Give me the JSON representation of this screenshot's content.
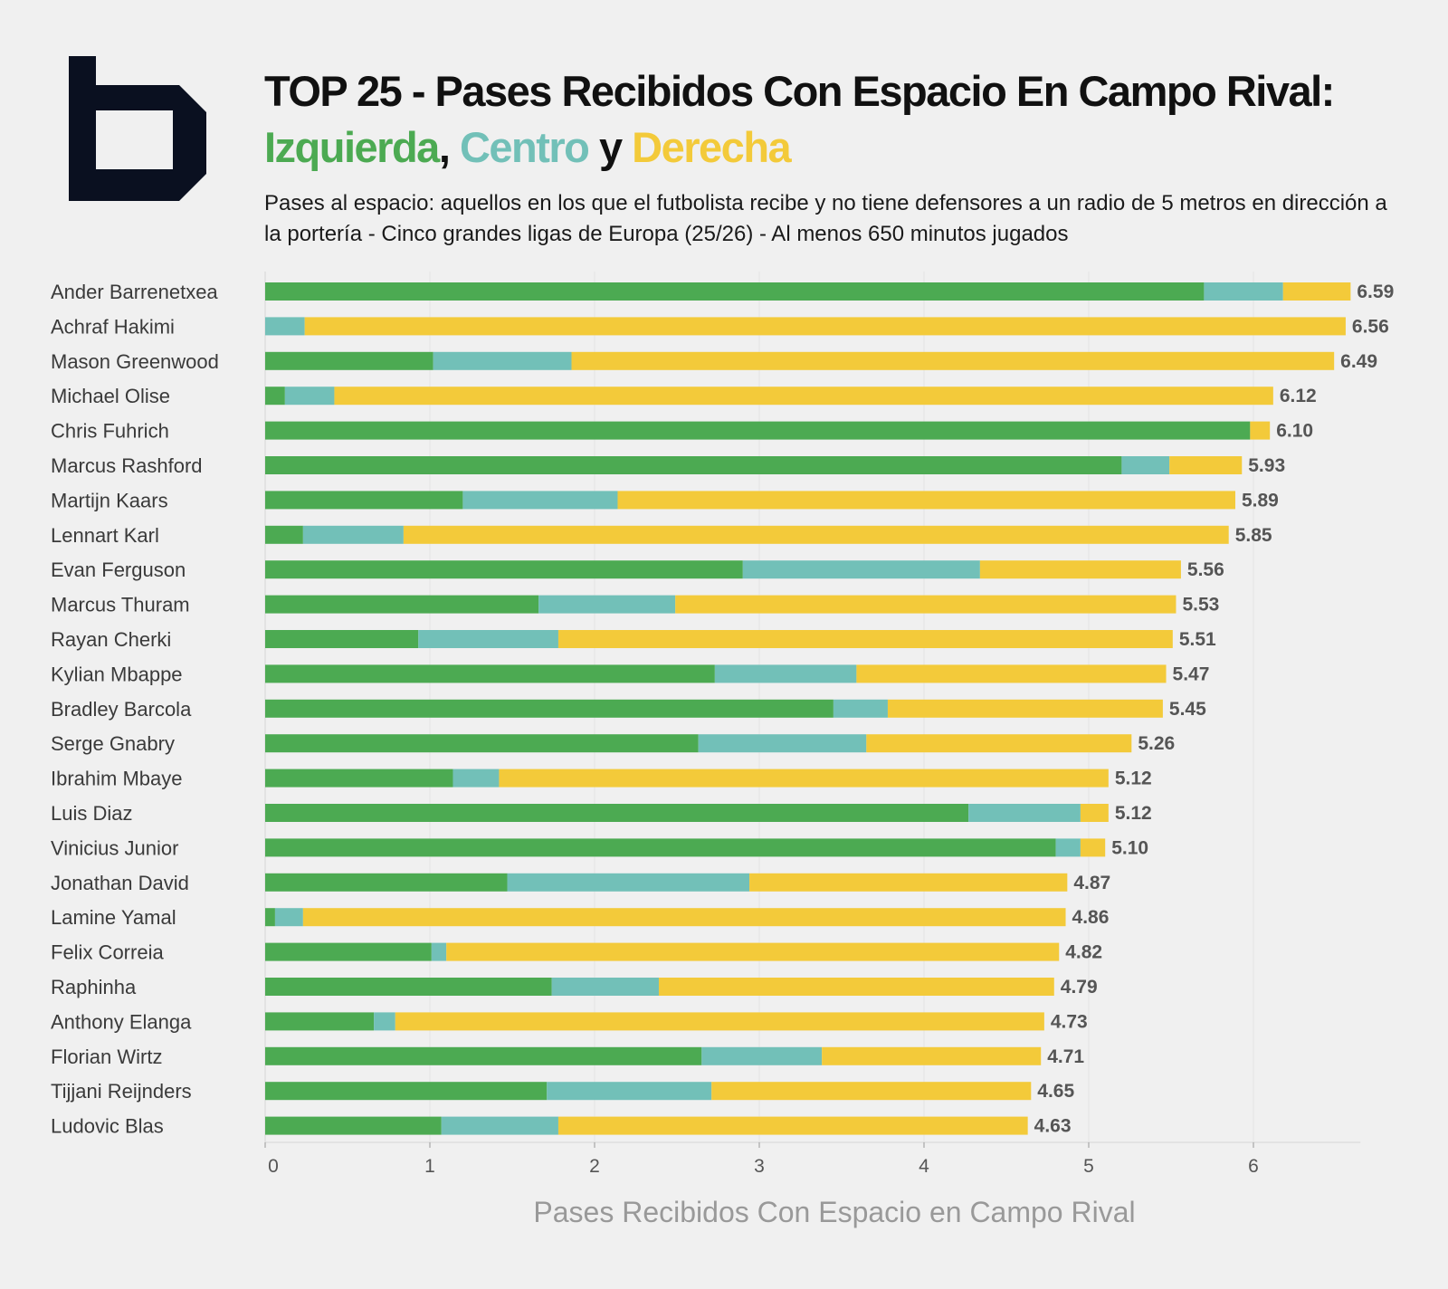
{
  "header": {
    "title_main": "TOP 25 - Pases Recibidos Con Espacio En Campo Rival:",
    "title_left": "Izquierda",
    "title_sep": ",",
    "title_center": "Centro",
    "title_and": "y",
    "title_right": "Derecha",
    "subtitle": "Pases al espacio: aquellos en los que el futbolista recibe y no tiene defensores a un radio de 5 metros en dirección a la portería - Cinco grandes ligas de Europa (25/26) - Al menos 650 minutos jugados",
    "logo_icon": "b-logo-icon"
  },
  "colors": {
    "izquierda": "#4caa52",
    "centro": "#72c0b8",
    "derecha": "#f3ca3a",
    "logo": "#0a1020"
  },
  "chart_data": {
    "type": "bar",
    "orientation": "horizontal",
    "stacked": true,
    "xlabel": "Pases Recibidos Con Espacio en Campo Rival",
    "xlim": [
      0,
      6.7
    ],
    "xticks": [
      0,
      1,
      2,
      3,
      4,
      5,
      6
    ],
    "grid": true,
    "categories": [
      "Ander Barrenetxea",
      "Achraf Hakimi",
      "Mason Greenwood",
      "Michael Olise",
      "Chris Fuhrich",
      "Marcus Rashford",
      "Martijn Kaars",
      "Lennart Karl",
      "Evan Ferguson",
      "Marcus Thuram",
      "Rayan Cherki",
      "Kylian Mbappe",
      "Bradley Barcola",
      "Serge Gnabry",
      "Ibrahim Mbaye",
      "Luis Diaz",
      "Vinicius Junior",
      "Jonathan David",
      "Lamine Yamal",
      "Felix Correia",
      "Raphinha",
      "Anthony Elanga",
      "Florian Wirtz",
      "Tijjani Reijnders",
      "Ludovic Blas"
    ],
    "series": [
      {
        "name": "Izquierda",
        "values": [
          5.7,
          0.0,
          1.02,
          0.12,
          5.98,
          5.2,
          1.2,
          0.23,
          2.9,
          1.66,
          0.93,
          2.73,
          3.45,
          2.63,
          1.14,
          4.27,
          4.8,
          1.47,
          0.06,
          1.01,
          1.74,
          0.66,
          2.65,
          1.71,
          1.07
        ]
      },
      {
        "name": "Centro",
        "values": [
          0.48,
          0.24,
          0.84,
          0.3,
          0.0,
          0.29,
          0.94,
          0.61,
          1.44,
          0.83,
          0.85,
          0.86,
          0.33,
          1.02,
          0.28,
          0.68,
          0.15,
          1.47,
          0.17,
          0.09,
          0.65,
          0.13,
          0.73,
          1.0,
          0.71
        ]
      },
      {
        "name": "Derecha",
        "values": [
          0.41,
          6.32,
          4.63,
          5.7,
          0.12,
          0.44,
          3.75,
          5.01,
          1.22,
          3.04,
          3.73,
          1.88,
          1.67,
          1.61,
          3.7,
          0.17,
          0.15,
          1.93,
          4.63,
          3.72,
          2.4,
          3.94,
          1.33,
          1.94,
          2.85
        ]
      }
    ],
    "totals": [
      "6.59",
      "6.56",
      "6.49",
      "6.12",
      "6.10",
      "5.93",
      "5.89",
      "5.85",
      "5.56",
      "5.53",
      "5.51",
      "5.47",
      "5.45",
      "5.26",
      "5.12",
      "5.12",
      "5.10",
      "4.87",
      "4.86",
      "4.82",
      "4.79",
      "4.73",
      "4.71",
      "4.65",
      "4.63"
    ]
  }
}
